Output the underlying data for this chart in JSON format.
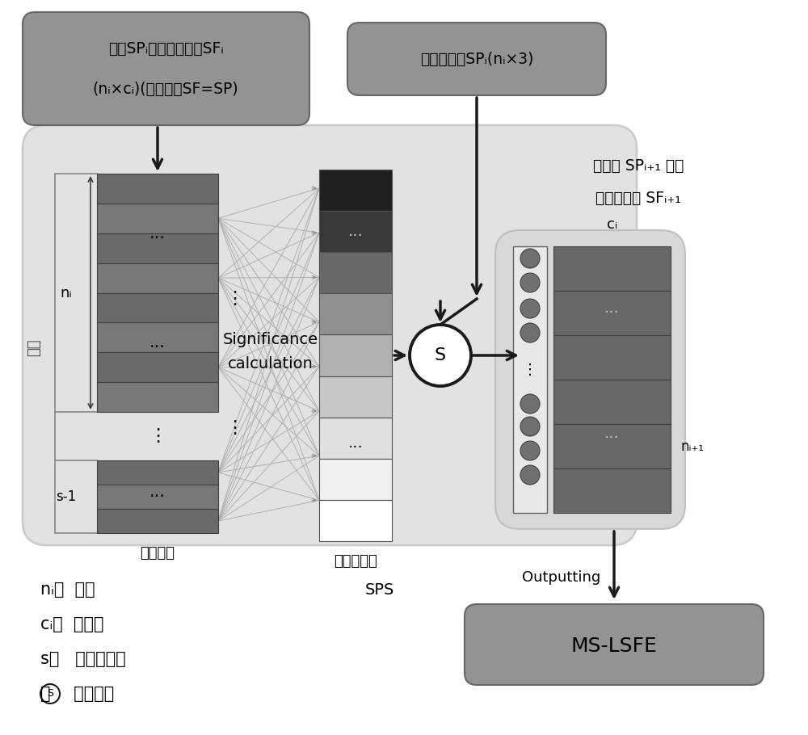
{
  "fig_w": 10.0,
  "fig_h": 9.1,
  "bg_outer": "#e0e0e0",
  "bg_white": "#ffffff",
  "gray_dark": "#585858",
  "gray_mid": "#808080",
  "gray_light": "#b0b0b0",
  "gray_box": "#939393",
  "gray_mslsfe": "#909090",
  "gray_output_bg": "#d0d0d0",
  "top_box1_text1": "输入SPᵢ的对应的特征SFᵢ",
  "top_box1_text2": "(nᵢ×cᵢ)(第一层中SF=SP)",
  "top_box2_text": "输入显著点SPᵢ(nᵢ×3)",
  "label_sig1": "Significance",
  "label_sig2": "calculation",
  "label_tezheng": "特征向量",
  "label_xianzhao": "显著度向量",
  "label_SPS": "SPS",
  "label_fuzhi": "复制",
  "label_ni": "nᵢ",
  "label_s1": "s-1",
  "label_S": "S",
  "label_ci": "cᵢ",
  "label_ni1": "nᵢ₊₁",
  "label_out1": "显著点 SPᵢ₊₁ 及其",
  "label_out2": "对应的特征 SFᵢ₊₁",
  "label_outputting": "Outputting",
  "label_mslsfe": "MS-LSFE",
  "leg1": "nᵢ：  点数",
  "leg2": "cᵢ：  特征数",
  "leg3": "s：   卷积核大小",
  "leg4": "Ⓢ：  采样操作"
}
